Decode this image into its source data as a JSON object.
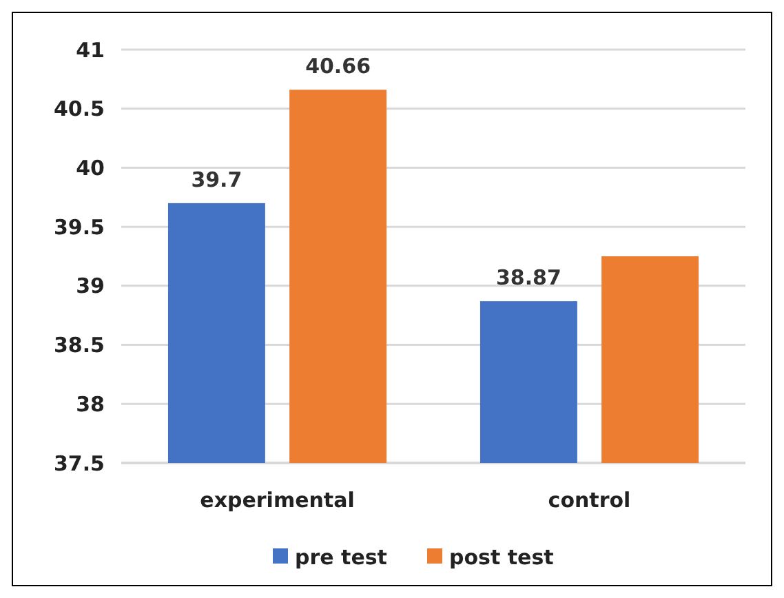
{
  "chart_data": {
    "type": "bar",
    "categories": [
      "experimental",
      "control"
    ],
    "series": [
      {
        "name": "pre test",
        "color": "#4472c4",
        "values": [
          39.7,
          38.87
        ],
        "value_labels": [
          "39.7",
          "38.87"
        ]
      },
      {
        "name": "post test",
        "color": "#ed7d31",
        "values": [
          40.66,
          39.25
        ],
        "value_labels": [
          "40.66",
          null
        ]
      }
    ],
    "ylim": [
      37.5,
      41
    ],
    "yticks": [
      37.5,
      38,
      38.5,
      39,
      39.5,
      40,
      40.5,
      41
    ],
    "grid": "y",
    "legend": "bottom"
  }
}
